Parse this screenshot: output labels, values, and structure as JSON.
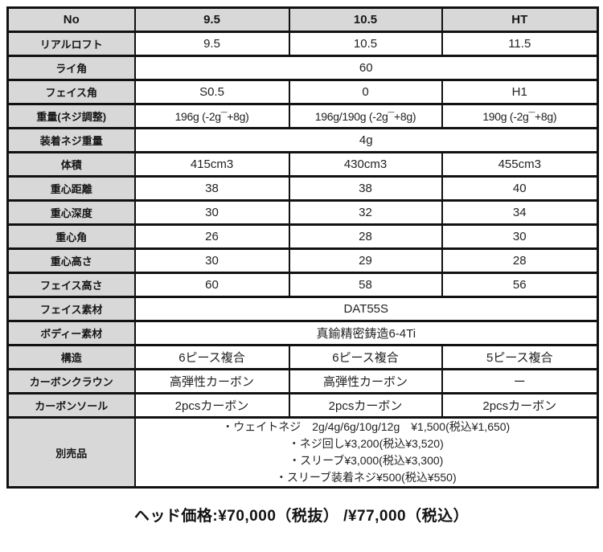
{
  "colors": {
    "header_bg": "#d8d8d8",
    "border": "#111111",
    "text": "#1d1d1d"
  },
  "table": {
    "columns": [
      "No",
      "9.5",
      "10.5",
      "HT"
    ],
    "rows": [
      {
        "label": "リアルロフト",
        "values": [
          "9.5",
          "10.5",
          "11.5"
        ]
      },
      {
        "label": "ライ角",
        "merged": "60"
      },
      {
        "label": "フェイス角",
        "values": [
          "S0.5",
          "0",
          "H1"
        ]
      },
      {
        "label": "重量(ネジ調整)",
        "values": [
          "196g (-2g¯+8g)",
          "196g/190g (-2g¯+8g)",
          "190g (-2g¯+8g)"
        ]
      },
      {
        "label": "装着ネジ重量",
        "merged": "4g"
      },
      {
        "label": "体積",
        "values": [
          "415cm3",
          "430cm3",
          "455cm3"
        ]
      },
      {
        "label": "重心距離",
        "values": [
          "38",
          "38",
          "40"
        ]
      },
      {
        "label": "重心深度",
        "values": [
          "30",
          "32",
          "34"
        ]
      },
      {
        "label": "重心角",
        "values": [
          "26",
          "28",
          "30"
        ]
      },
      {
        "label": "重心高さ",
        "values": [
          "30",
          "29",
          "28"
        ]
      },
      {
        "label": "フェイス高さ",
        "values": [
          "60",
          "58",
          "56"
        ]
      },
      {
        "label": "フェイス素材",
        "merged": "DAT55S"
      },
      {
        "label": "ボディー素材",
        "merged": "真鍮精密鋳造6-4Ti"
      },
      {
        "label": "構造",
        "values": [
          "6ピース複合",
          "6ピース複合",
          "5ピース複合"
        ]
      },
      {
        "label": "カーボンクラウン",
        "values": [
          "高弾性カーボン",
          "高弾性カーボン",
          "ー"
        ]
      },
      {
        "label": "カーボンソール",
        "values": [
          "2pcsカーボン",
          "2pcsカーボン",
          "2pcsカーボン"
        ]
      },
      {
        "label": "別売品",
        "lines": [
          "・ウェイトネジ　2g/4g/6g/10g/12g　¥1,500(税込¥1,650)",
          "・ネジ回し¥3,200(税込¥3,520)",
          "・スリーブ¥3,000(税込¥3,300)",
          "・スリーブ装着ネジ¥500(税込¥550)"
        ]
      }
    ]
  },
  "footer": {
    "price": "ヘッド価格:¥70,000（税抜） /¥77,000（税込）"
  }
}
